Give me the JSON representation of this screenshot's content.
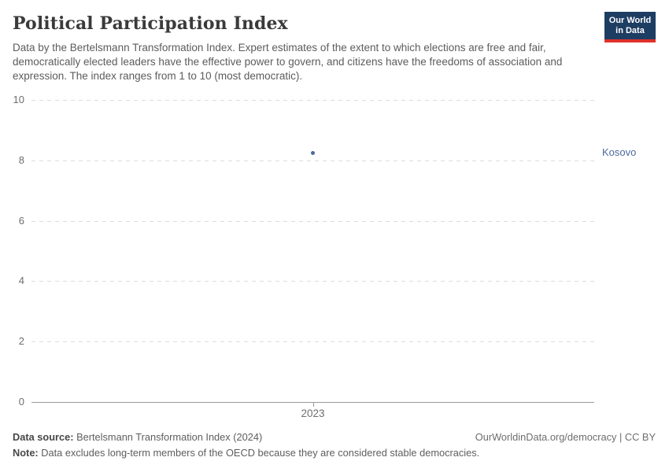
{
  "header": {
    "title": "Political Participation Index",
    "subtitle": "Data by the Bertelsmann Transformation Index. Expert estimates of the extent to which elections are free and fair, democratically elected leaders have the effective power to govern, and citizens have the freedoms of association and expression. The index ranges from 1 to 10 (most democratic).",
    "logo": {
      "line1": "Our World",
      "line2": "in Data",
      "background_color": "#1d3d63",
      "accent_color": "#e0312b"
    }
  },
  "chart_data": {
    "type": "scatter",
    "title": "Political Participation Index",
    "x": [
      2023
    ],
    "xticks": [
      "2023"
    ],
    "series": [
      {
        "name": "Kosovo",
        "values": [
          8.25
        ],
        "color": "#4c6a9c"
      }
    ],
    "xlabel": "",
    "ylabel": "",
    "ylim": [
      0,
      10
    ],
    "yticks": [
      0,
      2,
      4,
      6,
      8,
      10
    ],
    "grid": "horizontal-dashed",
    "legend_position": "entity-label-right"
  },
  "footer": {
    "source_label": "Data source:",
    "source_text": " Bertelsmann Transformation Index (2024)",
    "note_label": "Note:",
    "note_text": " Data excludes long-term members of the OECD because they are considered stable democracies.",
    "link_text": "OurWorldinData.org/democracy | CC BY"
  }
}
